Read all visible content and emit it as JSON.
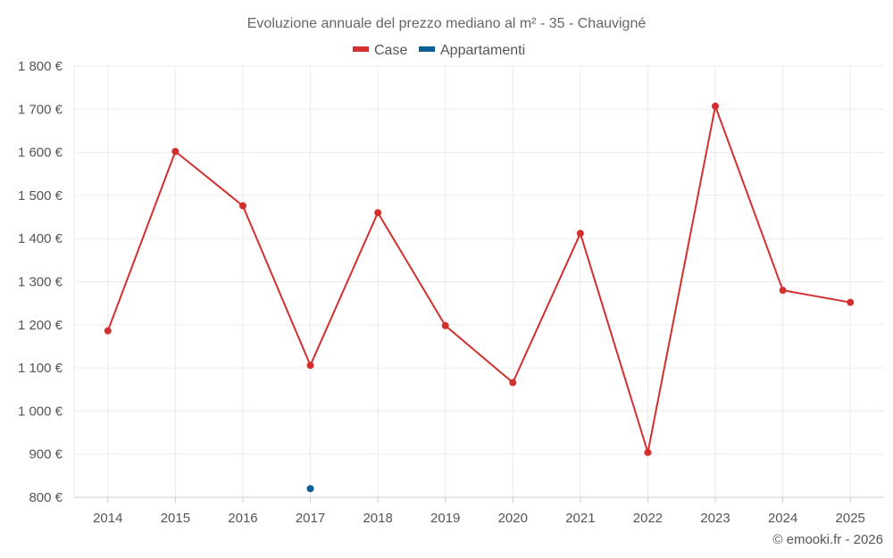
{
  "chart_data": {
    "type": "line",
    "title": "Evoluzione annuale del prezzo mediano al m² - 35 - Chauvigné",
    "categories": [
      "2014",
      "2015",
      "2016",
      "2017",
      "2018",
      "2019",
      "2020",
      "2021",
      "2022",
      "2023",
      "2024",
      "2025"
    ],
    "ylim": [
      800,
      1800
    ],
    "yticks": [
      800,
      900,
      1000,
      1100,
      1200,
      1300,
      1400,
      1500,
      1600,
      1700,
      1800
    ],
    "ytick_labels": [
      "800 €",
      "900 €",
      "1 000 €",
      "1 100 €",
      "1 200 €",
      "1 300 €",
      "1 400 €",
      "1 500 €",
      "1 600 €",
      "1 700 €",
      "1 800 €"
    ],
    "grid": true,
    "legend_position": "top-center",
    "series": [
      {
        "name": "Case",
        "color": "#d32f2f",
        "values": [
          1186,
          1602,
          1476,
          1106,
          1460,
          1198,
          1066,
          1412,
          904,
          1707,
          1280,
          1252
        ]
      },
      {
        "name": "Appartamenti",
        "color": "#0b5f95",
        "values": [
          null,
          null,
          null,
          820,
          null,
          null,
          null,
          null,
          null,
          null,
          null,
          null
        ]
      }
    ],
    "credit": "© emooki.fr - 2026"
  }
}
